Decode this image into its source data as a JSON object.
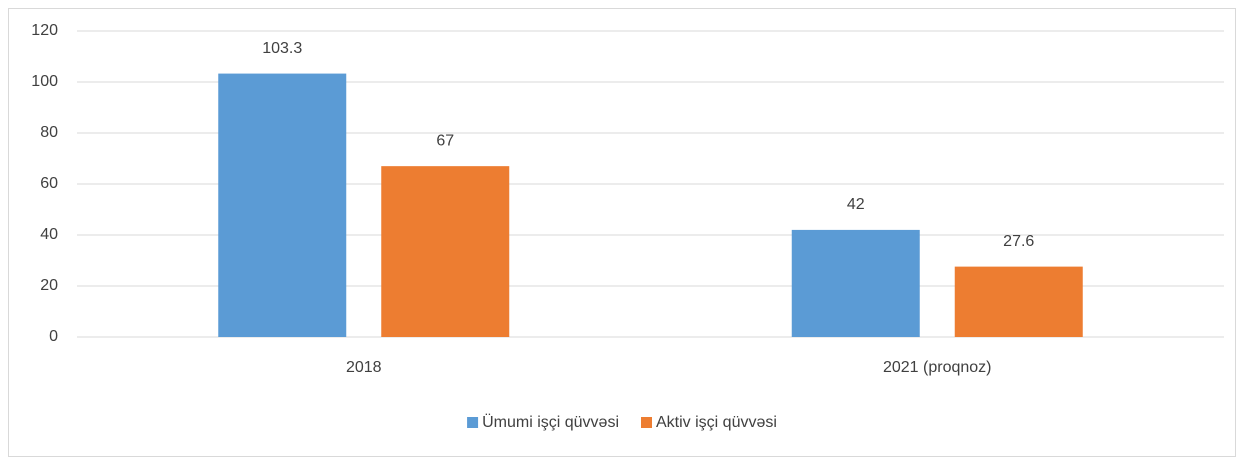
{
  "chart_data": {
    "type": "bar",
    "categories": [
      "2018",
      "2021 (proqnoz)"
    ],
    "series": [
      {
        "name": "Ümumi işçi qüvvəsi",
        "color": "#5b9bd5",
        "values": [
          103.3,
          42
        ]
      },
      {
        "name": "Aktiv işçi qüvvəsi",
        "color": "#ed7d31",
        "values": [
          67,
          27.6
        ]
      }
    ],
    "ylim": [
      0,
      120
    ],
    "yticks": [
      0,
      20,
      40,
      60,
      80,
      100,
      120
    ],
    "grid": true,
    "legend": "bottom"
  }
}
